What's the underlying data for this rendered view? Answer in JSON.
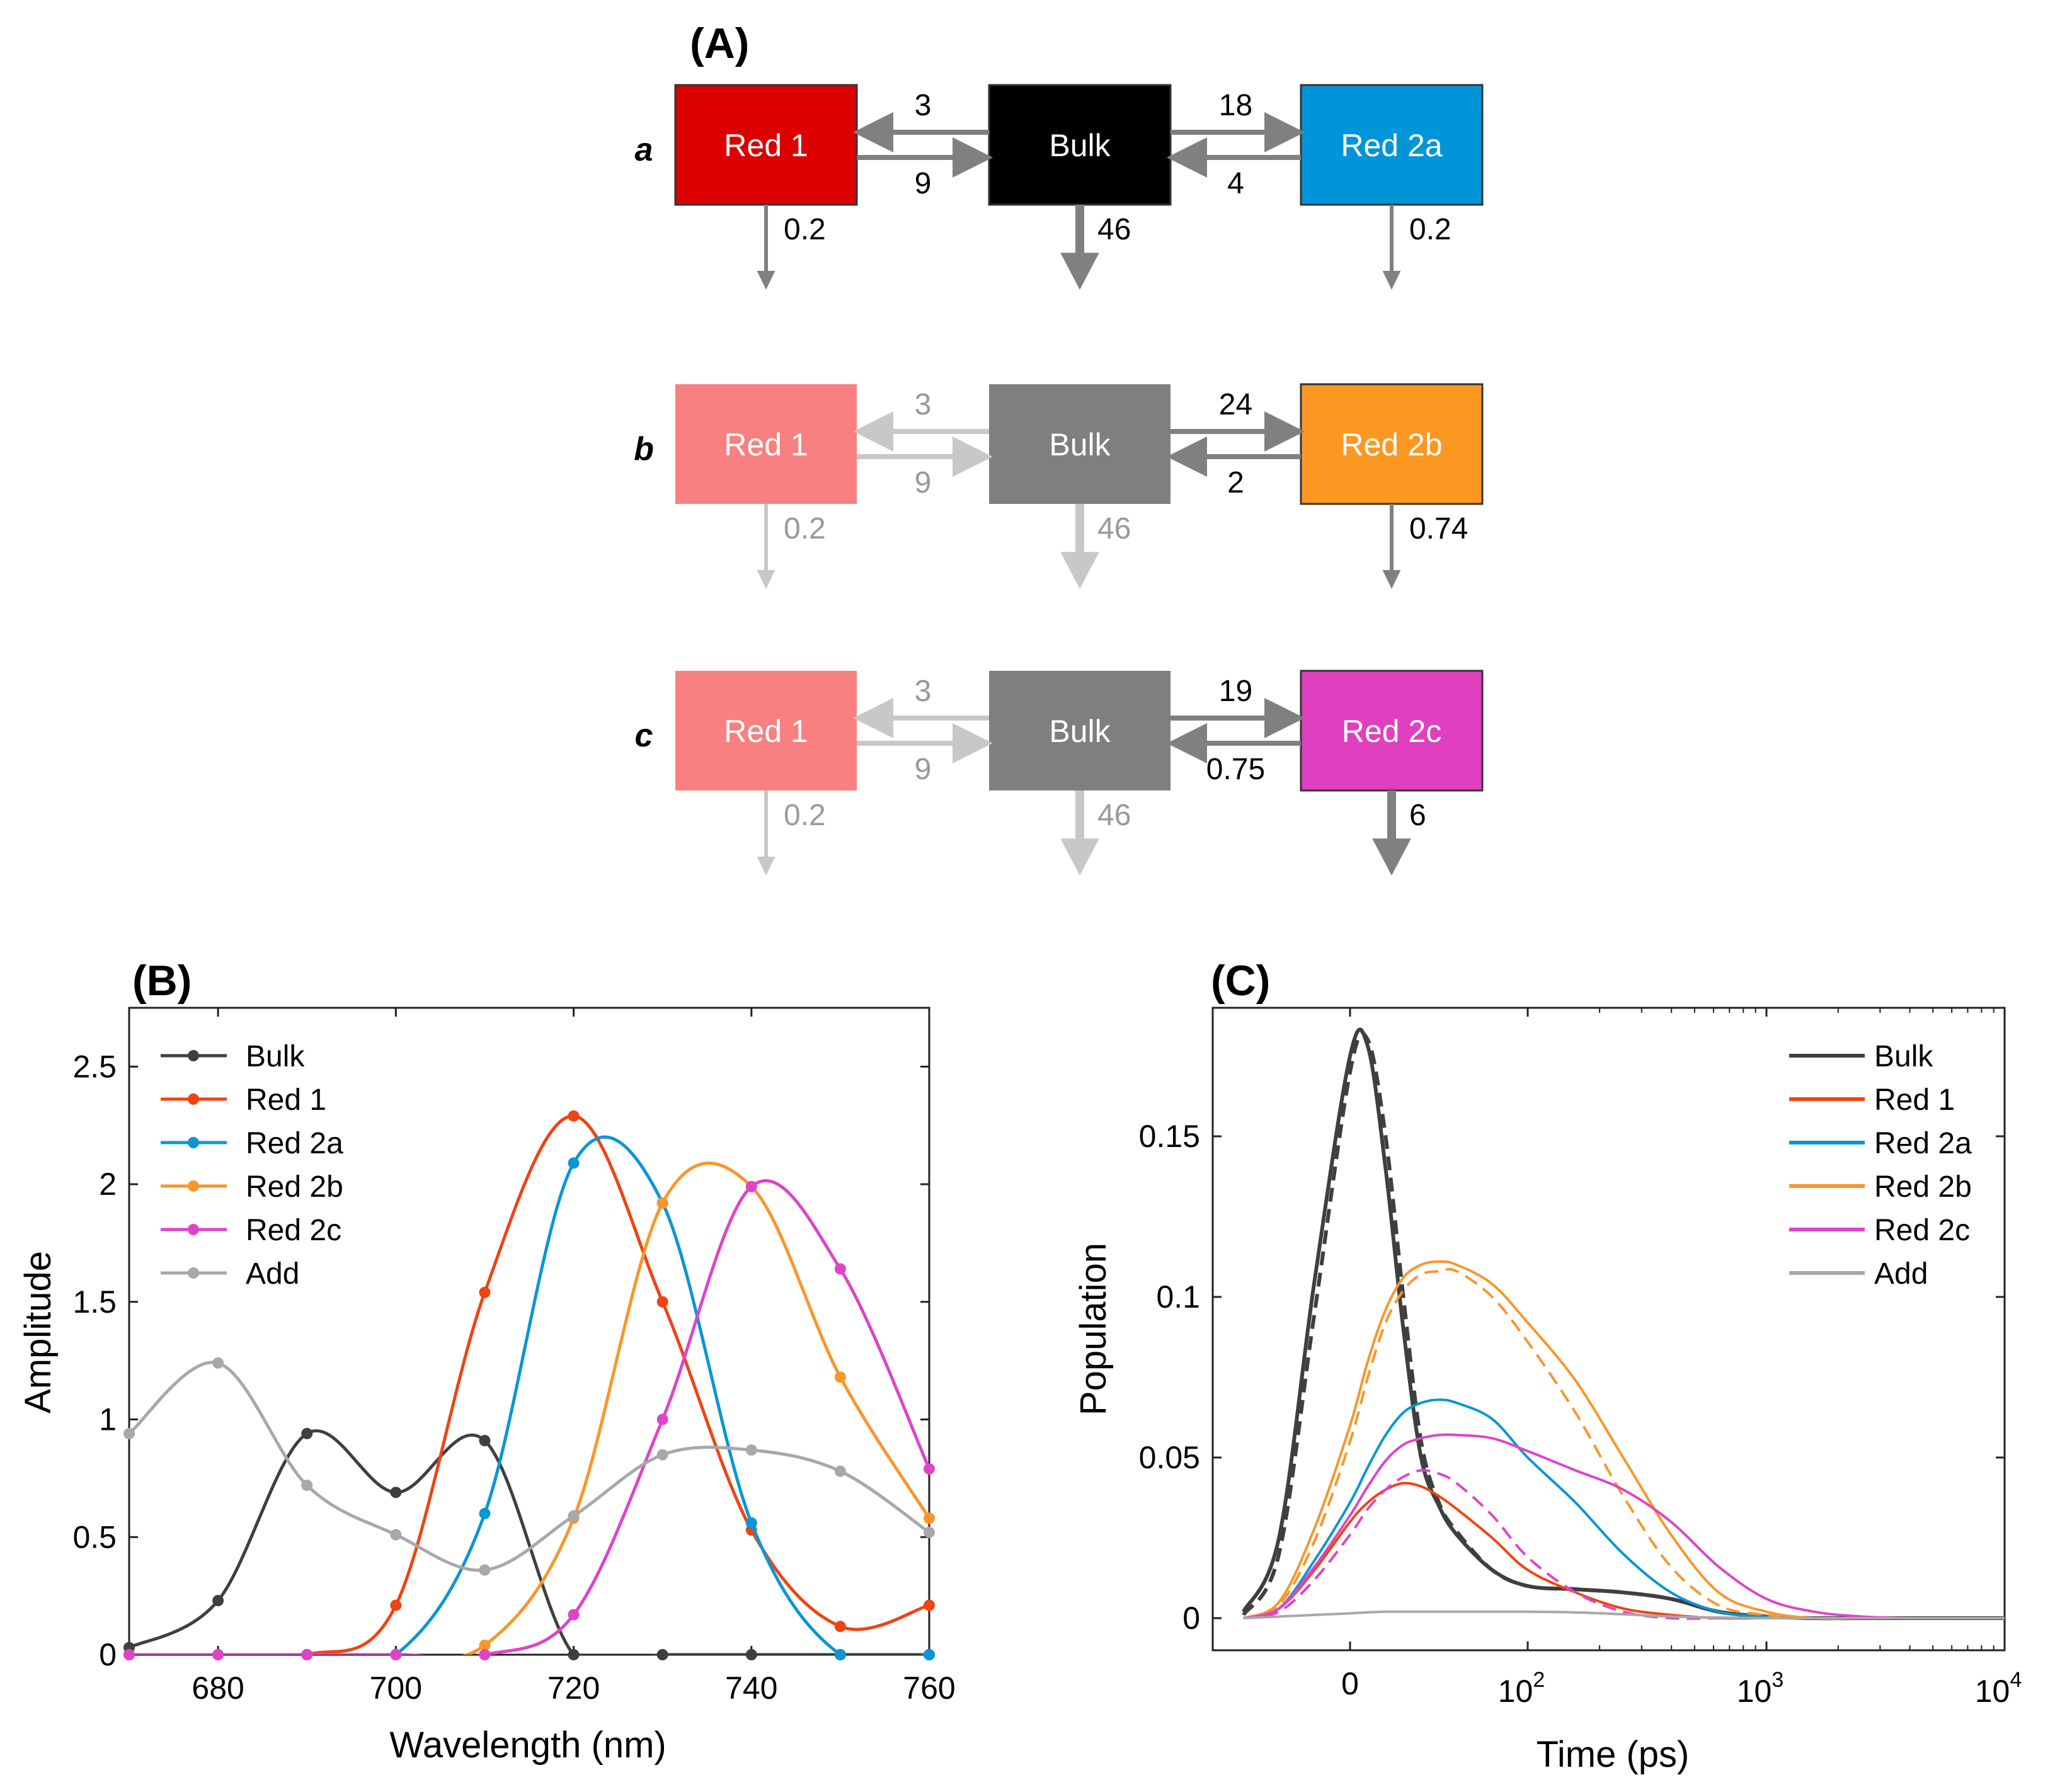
{
  "panel_a": {
    "label": "(A)",
    "rows": [
      {
        "row_label": "a",
        "left": {
          "name": "Red 1",
          "color": "#dd0000",
          "text_color": "#ffffff",
          "faded": false
        },
        "center": {
          "name": "Bulk",
          "color": "#000000",
          "text_color": "#ffffff"
        },
        "right": {
          "name": "Red 2a",
          "color": "#0095d8",
          "text_color": "#ffffff"
        },
        "rate_center_to_left": "3",
        "rate_left_to_center": "9",
        "rate_center_to_right": "18",
        "rate_right_to_center": "4",
        "decay_left": "0.2",
        "decay_center": "46",
        "decay_right": "0.2",
        "left_arrows_faded": false
      },
      {
        "row_label": "b",
        "left": {
          "name": "Red 1",
          "color": "#f88080",
          "text_color": "#ffffff",
          "faded": true
        },
        "center": {
          "name": "Bulk",
          "color": "#7f7f7f",
          "text_color": "#ffffff"
        },
        "right": {
          "name": "Red 2b",
          "color": "#fb9822",
          "text_color": "#ffffff"
        },
        "rate_center_to_left": "3",
        "rate_left_to_center": "9",
        "rate_center_to_right": "24",
        "rate_right_to_center": "2",
        "decay_left": "0.2",
        "decay_center": "46",
        "decay_right": "0.74",
        "left_arrows_faded": true
      },
      {
        "row_label": "c",
        "left": {
          "name": "Red 1",
          "color": "#f88080",
          "text_color": "#ffffff",
          "faded": true
        },
        "center": {
          "name": "Bulk",
          "color": "#7f7f7f",
          "text_color": "#ffffff"
        },
        "right": {
          "name": "Red 2c",
          "color": "#e03fbf",
          "text_color": "#ffffff"
        },
        "rate_center_to_left": "3",
        "rate_left_to_center": "9",
        "rate_center_to_right": "19",
        "rate_right_to_center": "0.75",
        "decay_left": "0.2",
        "decay_center": "46",
        "decay_right": "6",
        "left_arrows_faded": true
      }
    ]
  },
  "chart_data": [
    {
      "panel": "(B)",
      "type": "line",
      "xlabel": "Wavelength (nm)",
      "ylabel": "Amplitude",
      "xlim": [
        670,
        760
      ],
      "ylim": [
        0,
        2.75
      ],
      "xticks": [
        680,
        700,
        720,
        740,
        760
      ],
      "yticks": [
        0,
        0.5,
        1,
        1.5,
        2,
        2.5
      ],
      "ytick_labels": [
        "0",
        "0.5",
        "1",
        "1.5",
        "2",
        "2.5"
      ],
      "legend": "top-left",
      "x": [
        670,
        680,
        690,
        700,
        710,
        720,
        730,
        740,
        750,
        760
      ],
      "series": [
        {
          "name": "Bulk",
          "color": "#3f3f3f",
          "values": [
            0.03,
            0.23,
            0.94,
            0.69,
            0.91,
            0.0,
            0.0,
            0.0,
            0.0,
            0.0
          ]
        },
        {
          "name": "Red 1",
          "color": "#ee4412",
          "values": [
            0.0,
            0.0,
            0.0,
            0.21,
            1.54,
            2.29,
            1.5,
            0.53,
            0.12,
            0.21
          ]
        },
        {
          "name": "Red 2a",
          "color": "#0a96d4",
          "values": [
            0.0,
            0.0,
            0.0,
            0.0,
            0.6,
            2.09,
            1.92,
            0.56,
            0.0,
            0.0
          ]
        },
        {
          "name": "Red 2b",
          "color": "#f9962a",
          "values": [
            0.0,
            0.0,
            0.0,
            0.0,
            0.04,
            0.58,
            1.92,
            1.99,
            1.18,
            0.58
          ]
        },
        {
          "name": "Red 2c",
          "color": "#de44c8",
          "values": [
            0.0,
            0.0,
            0.0,
            0.0,
            0.0,
            0.17,
            1.0,
            1.99,
            1.64,
            0.79
          ]
        },
        {
          "name": "Add",
          "color": "#a8a8a8",
          "values": [
            0.94,
            1.24,
            0.72,
            0.51,
            0.36,
            0.59,
            0.85,
            0.87,
            0.78,
            0.52
          ]
        }
      ]
    },
    {
      "panel": "(C)",
      "type": "line",
      "xlabel": "Time (ps)",
      "ylabel": "Population",
      "xscale": "log (axis starts below 0; 0 drawn at left part)",
      "xticks": [
        "0",
        "10^2",
        "10^3",
        "10^4"
      ],
      "ylim": [
        -0.01,
        0.19
      ],
      "yticks": [
        0,
        0.05,
        0.1,
        0.15
      ],
      "ytick_labels": [
        "0",
        "0.05",
        "0.1",
        "0.15"
      ],
      "legend": "top-right",
      "note": "solid = fit, dashed = second model; t-axis parameterised as tick units: 0 at '0', 1 at 10^2, 2 at 10^3, 3 at 10^4",
      "t": [
        -0.6,
        -0.4,
        -0.2,
        0.0,
        0.1,
        0.2,
        0.3,
        0.4,
        0.5,
        0.6,
        0.8,
        1.0,
        1.2,
        1.4,
        1.6,
        1.8,
        2.0,
        2.2,
        2.4,
        2.6,
        2.8,
        3.0
      ],
      "series": [
        {
          "name": "Bulk",
          "color": "#3f3f3f",
          "style": "solid",
          "values": [
            0.002,
            0.025,
            0.105,
            0.175,
            0.178,
            0.14,
            0.09,
            0.05,
            0.035,
            0.026,
            0.015,
            0.01,
            0.009,
            0.008,
            0.006,
            0.002,
            0.0005,
            0.0,
            0.0,
            0.0,
            0.0,
            0.0
          ]
        },
        {
          "name": "Bulk (dashed)",
          "color": "#3f3f3f",
          "style": "dashed",
          "values": [
            0.001,
            0.02,
            0.095,
            0.17,
            0.18,
            0.15,
            0.1,
            0.055,
            0.036,
            0.027,
            0.015,
            0.01,
            0.009,
            0.008,
            0.006,
            0.002,
            0.0005,
            0.0,
            0.0,
            0.0,
            0.0,
            0.0
          ]
        },
        {
          "name": "Red 1",
          "color": "#ee4412",
          "style": "solid",
          "values": [
            0.0,
            0.003,
            0.015,
            0.03,
            0.036,
            0.04,
            0.042,
            0.041,
            0.038,
            0.034,
            0.025,
            0.015,
            0.008,
            0.003,
            0.001,
            0.0,
            0.0,
            0.0,
            0.0,
            0.0,
            0.0,
            0.0
          ]
        },
        {
          "name": "Red 2a",
          "color": "#0a96d4",
          "style": "solid",
          "values": [
            0.0,
            0.003,
            0.018,
            0.036,
            0.047,
            0.057,
            0.064,
            0.067,
            0.068,
            0.067,
            0.062,
            0.05,
            0.036,
            0.02,
            0.008,
            0.002,
            0.0005,
            0.0,
            0.0,
            0.0,
            0.0,
            0.0
          ]
        },
        {
          "name": "Red 2b",
          "color": "#f9962a",
          "style": "solid",
          "values": [
            0.0,
            0.005,
            0.028,
            0.06,
            0.08,
            0.096,
            0.106,
            0.11,
            0.111,
            0.11,
            0.104,
            0.092,
            0.074,
            0.05,
            0.026,
            0.008,
            0.002,
            0.0,
            0.0,
            0.0,
            0.0,
            0.0
          ]
        },
        {
          "name": "Red 2b (dashed)",
          "color": "#f9962a",
          "style": "dashed",
          "values": [
            0.0,
            0.004,
            0.024,
            0.055,
            0.075,
            0.092,
            0.102,
            0.107,
            0.108,
            0.108,
            0.1,
            0.086,
            0.064,
            0.038,
            0.016,
            0.004,
            0.001,
            0.0,
            0.0,
            0.0,
            0.0,
            0.0
          ]
        },
        {
          "name": "Red 2c",
          "color": "#de44c8",
          "style": "solid",
          "values": [
            0.0,
            0.003,
            0.016,
            0.032,
            0.041,
            0.049,
            0.054,
            0.056,
            0.057,
            0.057,
            0.056,
            0.052,
            0.046,
            0.04,
            0.03,
            0.016,
            0.006,
            0.002,
            0.0005,
            0.0,
            0.0,
            0.0
          ]
        },
        {
          "name": "Red 2c (dashed)",
          "color": "#de44c8",
          "style": "dashed",
          "values": [
            0.0,
            0.002,
            0.012,
            0.026,
            0.034,
            0.04,
            0.044,
            0.046,
            0.045,
            0.042,
            0.032,
            0.019,
            0.008,
            0.002,
            0.0,
            0.0,
            0.0,
            0.0,
            0.0,
            0.0,
            0.0,
            0.0
          ]
        },
        {
          "name": "Add",
          "color": "#a8a8a8",
          "style": "solid",
          "values": [
            0.0,
            0.0005,
            0.001,
            0.0015,
            0.0018,
            0.002,
            0.002,
            0.002,
            0.002,
            0.002,
            0.002,
            0.002,
            0.0018,
            0.0012,
            0.0005,
            0.0002,
            0.0,
            0.0,
            0.0,
            0.0,
            0.0,
            0.0
          ]
        }
      ]
    }
  ]
}
